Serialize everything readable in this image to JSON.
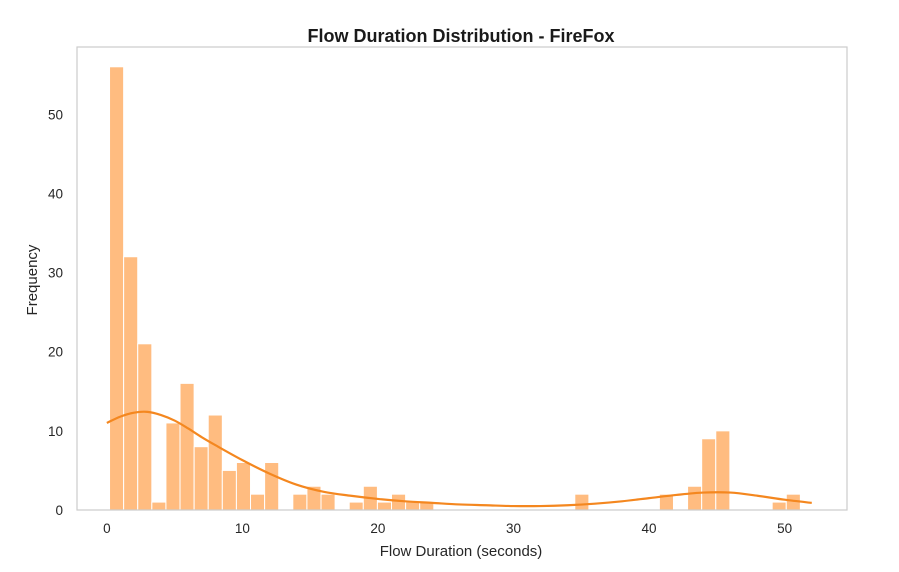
{
  "chart_data": {
    "type": "bar",
    "title": "Flow Duration Distribution - FireFox",
    "xlabel": "Flow Duration (seconds)",
    "ylabel": "Frequency",
    "xlim": [
      -2.2,
      54.6
    ],
    "ylim": [
      0,
      58.5
    ],
    "xticks": [
      0,
      10,
      20,
      30,
      40,
      50
    ],
    "yticks": [
      0,
      10,
      20,
      30,
      40,
      50
    ],
    "grid": false,
    "bin_start": 0.2,
    "bin_width": 1.04,
    "values": [
      56,
      32,
      21,
      1,
      11,
      16,
      8,
      12,
      5,
      6,
      2,
      6,
      0,
      2,
      3,
      2,
      0,
      1,
      3,
      1,
      2,
      1,
      1,
      0,
      0,
      0,
      0,
      0,
      0,
      0,
      0,
      0,
      0,
      2,
      0,
      0,
      0,
      0,
      0,
      2,
      0,
      3,
      9,
      10,
      0,
      0,
      0,
      1,
      2
    ],
    "kde": {
      "x": [
        0,
        1,
        2,
        3,
        4,
        5,
        6,
        7,
        8,
        10,
        12,
        14,
        16,
        18,
        20,
        22,
        24,
        26,
        28,
        30,
        32,
        34,
        36,
        38,
        40,
        42,
        44,
        46,
        48,
        50,
        52
      ],
      "y": [
        11,
        11.8,
        12.3,
        12.4,
        12.0,
        11.3,
        10.3,
        9.2,
        8.2,
        6.3,
        4.6,
        3.2,
        2.3,
        1.8,
        1.4,
        1.1,
        0.9,
        0.7,
        0.6,
        0.5,
        0.5,
        0.6,
        0.8,
        1.1,
        1.5,
        1.9,
        2.2,
        2.2,
        1.8,
        1.3,
        0.9
      ]
    },
    "colors": {
      "bar_fill": "#ffbc80",
      "bar_edge": "#ffffff",
      "kde_line": "#f4871f",
      "frame": "#cccccc"
    }
  }
}
